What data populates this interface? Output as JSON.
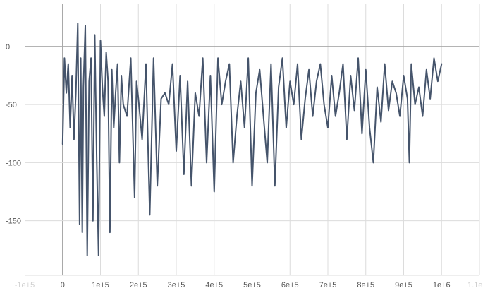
{
  "chart_data": {
    "type": "line",
    "title": "",
    "xlabel": "",
    "ylabel": "",
    "xlim": [
      -100000,
      1100000
    ],
    "ylim": [
      -197,
      37
    ],
    "x_ticks": [
      -100000,
      0,
      100000,
      200000,
      300000,
      400000,
      500000,
      600000,
      700000,
      800000,
      900000,
      1000000,
      1100000
    ],
    "x_tick_labels": [
      "-1e+5",
      "0",
      "1e+5",
      "2e+5",
      "3e+5",
      "4e+5",
      "5e+5",
      "6e+5",
      "7e+5",
      "8e+5",
      "9e+5",
      "1e+6",
      "1.1e+6"
    ],
    "x_tick_faded": [
      true,
      false,
      false,
      false,
      false,
      false,
      false,
      false,
      false,
      false,
      false,
      false,
      true
    ],
    "y_ticks": [
      0,
      -50,
      -100,
      -150
    ],
    "y_tick_labels": [
      "0",
      "-50",
      "-100",
      "-150"
    ],
    "grid": true,
    "colors": {
      "line": "#45546b",
      "grid": "#dcdcdc",
      "zero_axis": "#a9a9a9"
    },
    "series": [
      {
        "x": [
          0,
          5000,
          10000,
          15000,
          20000,
          25000,
          30000,
          35000,
          40000,
          45000,
          48000,
          52000,
          55000,
          60000,
          65000,
          70000,
          75000,
          80000,
          85000,
          90000,
          95000,
          100000,
          105000,
          110000,
          115000,
          120000,
          125000,
          130000,
          135000,
          140000,
          145000,
          150000,
          155000,
          160000,
          170000,
          180000,
          190000,
          195000,
          200000,
          210000,
          220000,
          230000,
          240000,
          250000,
          260000,
          270000,
          280000,
          290000,
          300000,
          310000,
          320000,
          330000,
          340000,
          350000,
          360000,
          370000,
          380000,
          390000,
          400000,
          410000,
          420000,
          430000,
          440000,
          450000,
          460000,
          470000,
          480000,
          490000,
          500000,
          510000,
          520000,
          530000,
          540000,
          550000,
          560000,
          570000,
          580000,
          590000,
          600000,
          610000,
          620000,
          630000,
          640000,
          650000,
          660000,
          670000,
          680000,
          690000,
          700000,
          710000,
          720000,
          730000,
          740000,
          750000,
          760000,
          770000,
          780000,
          790000,
          800000,
          810000,
          820000,
          830000,
          840000,
          850000,
          860000,
          870000,
          880000,
          890000,
          900000,
          910000,
          915000,
          920000,
          930000,
          940000,
          950000,
          960000,
          970000,
          980000,
          990000,
          1000000
        ],
        "y": [
          -84,
          -10,
          -40,
          -15,
          -70,
          -25,
          -80,
          -40,
          20,
          -153,
          -10,
          -160,
          -35,
          18,
          -180,
          -30,
          -10,
          -150,
          10,
          -95,
          -180,
          5,
          -35,
          -60,
          -5,
          -30,
          -160,
          -20,
          -70,
          -40,
          -15,
          -100,
          -25,
          -50,
          -60,
          -10,
          -130,
          -30,
          -45,
          -80,
          -15,
          -145,
          -10,
          -120,
          -45,
          -40,
          -50,
          -15,
          -90,
          -25,
          -110,
          -30,
          -120,
          -40,
          -60,
          -10,
          -100,
          -25,
          -125,
          -10,
          -50,
          -30,
          -15,
          -100,
          -60,
          -30,
          -70,
          -10,
          -120,
          -40,
          -20,
          -60,
          -100,
          -15,
          -120,
          -35,
          -10,
          -70,
          -30,
          -50,
          -15,
          -80,
          -45,
          -20,
          -60,
          -30,
          -15,
          -50,
          -70,
          -25,
          -60,
          -40,
          -15,
          -80,
          -25,
          -55,
          -10,
          -75,
          -20,
          -70,
          -100,
          -35,
          -65,
          -15,
          -55,
          -30,
          -40,
          -60,
          -25,
          -45,
          -100,
          -15,
          -50,
          -35,
          -60,
          -20,
          -45,
          -10,
          -30,
          -15
        ],
        "stroke_width": 2
      }
    ]
  }
}
